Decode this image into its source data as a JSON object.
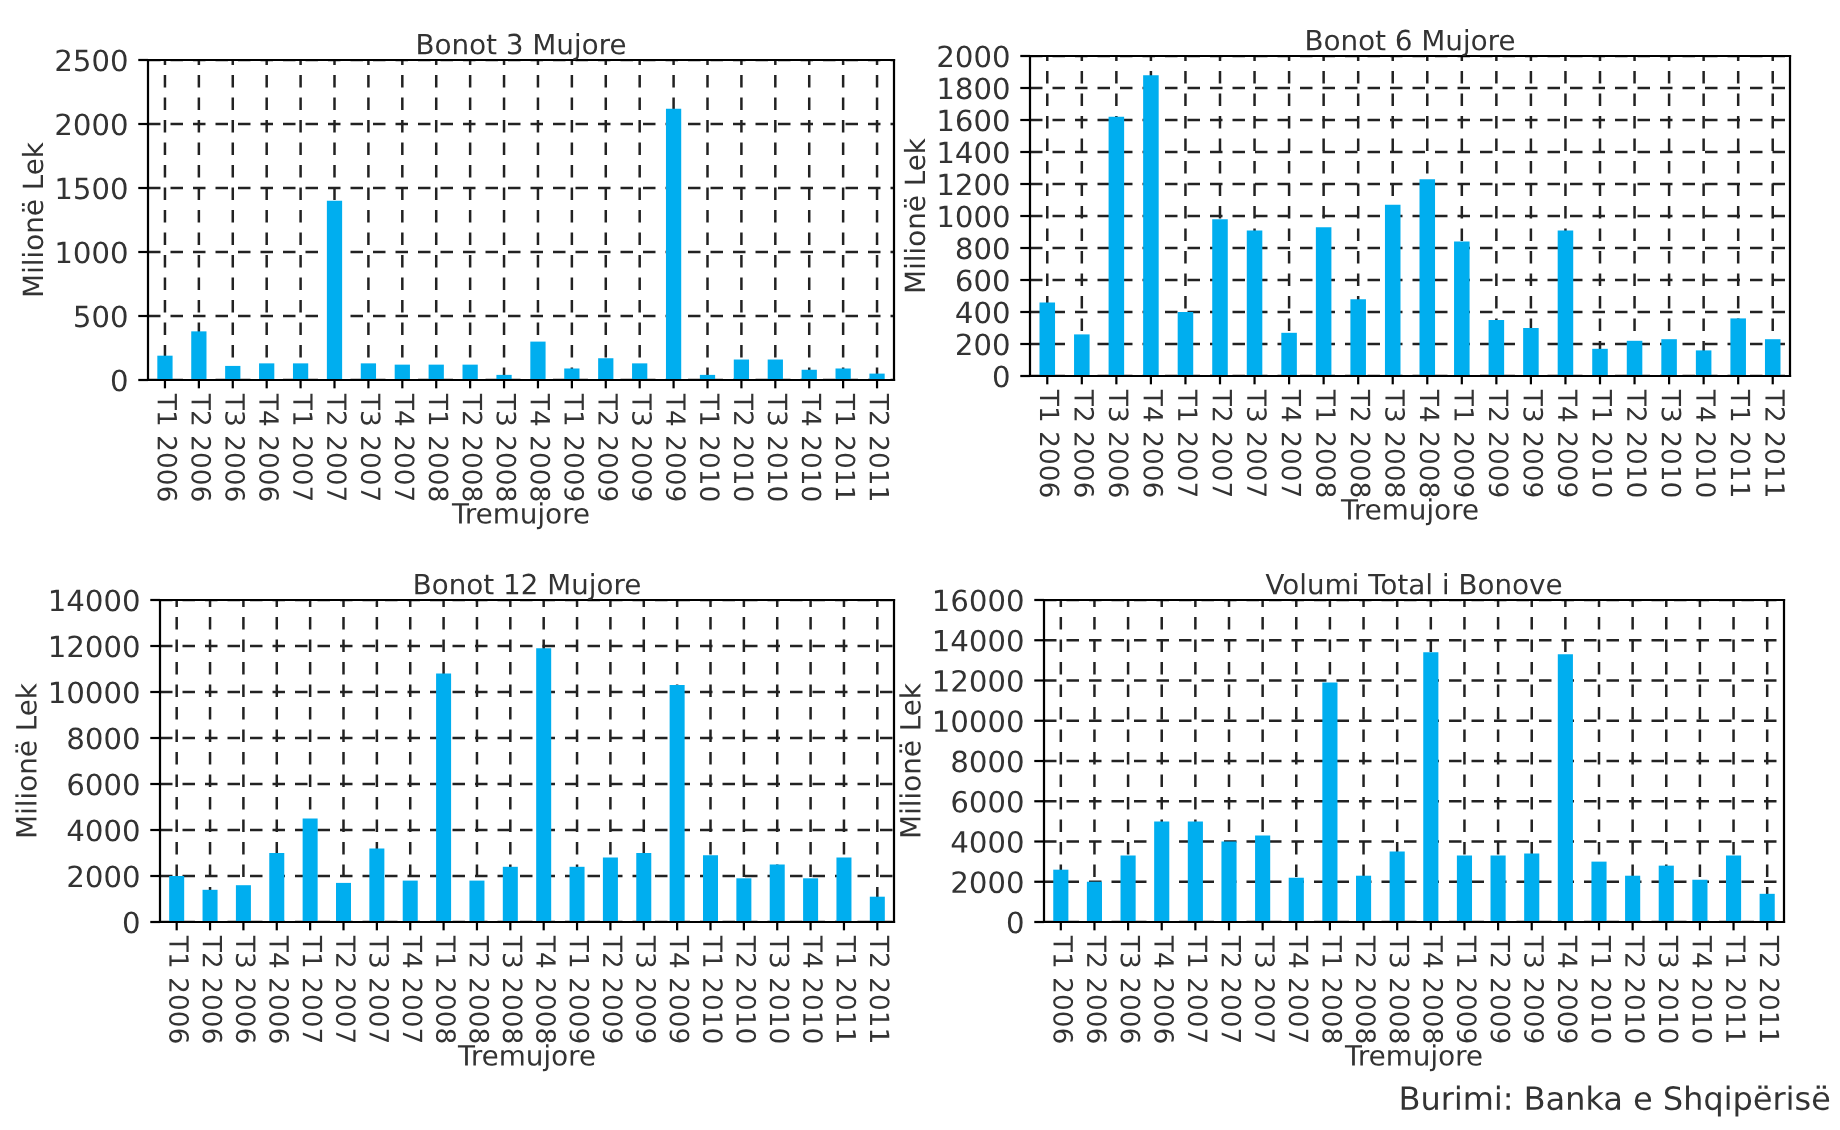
{
  "chart_data": [
    {
      "type": "bar",
      "title": "Bonot 3 Mujore",
      "xlabel": "Tremujore",
      "ylabel": "Milionë Lek",
      "categories": [
        "T1 2006",
        "T2 2006",
        "T3 2006",
        "T4 2006",
        "T1 2007",
        "T2 2007",
        "T3 2007",
        "T4 2007",
        "T1 2008",
        "T2 2008",
        "T3 2008",
        "T4 2008",
        "T1 2009",
        "T2 2009",
        "T3 2009",
        "T4 2009",
        "T1 2010",
        "T2 2010",
        "T3 2010",
        "T4 2010",
        "T1 2011",
        "T2 2011"
      ],
      "values": [
        190,
        380,
        110,
        130,
        130,
        1400,
        130,
        120,
        120,
        120,
        40,
        300,
        90,
        170,
        130,
        2120,
        40,
        160,
        160,
        80,
        90,
        50
      ],
      "color": "#00aeef",
      "ylim": [
        0,
        2500
      ],
      "yticks": [
        0,
        500,
        1000,
        1500,
        2000,
        2500
      ],
      "grid": true
    },
    {
      "type": "bar",
      "title": "Bonot 6 Mujore",
      "xlabel": "Tremujore",
      "ylabel": "Milionë Lek",
      "categories": [
        "T1 2006",
        "T2 2006",
        "T3 2006",
        "T4 2006",
        "T1 2007",
        "T2 2007",
        "T3 2007",
        "T4 2007",
        "T1 2008",
        "T2 2008",
        "T3 2008",
        "T4 2008",
        "T1 2009",
        "T2 2009",
        "T3 2009",
        "T4 2009",
        "T1 2010",
        "T2 2010",
        "T3 2010",
        "T4 2010",
        "T1 2011",
        "T2 2011"
      ],
      "values": [
        460,
        260,
        1620,
        1880,
        400,
        980,
        910,
        270,
        930,
        480,
        1070,
        1230,
        840,
        350,
        300,
        910,
        170,
        220,
        230,
        160,
        360,
        230
      ],
      "color": "#00aeef",
      "ylim": [
        0,
        2000
      ],
      "yticks": [
        0,
        200,
        400,
        600,
        800,
        1000,
        1200,
        1400,
        1600,
        1800,
        2000
      ],
      "grid": true
    },
    {
      "type": "bar",
      "title": "Bonot 12 Mujore",
      "xlabel": "Tremujore",
      "ylabel": "Milionë Lek",
      "categories": [
        "T1 2006",
        "T2 2006",
        "T3 2006",
        "T4 2006",
        "T1 2007",
        "T2 2007",
        "T3 2007",
        "T4 2007",
        "T1 2008",
        "T2 2008",
        "T3 2008",
        "T4 2008",
        "T1 2009",
        "T2 2009",
        "T3 2009",
        "T4 2009",
        "T1 2010",
        "T2 2010",
        "T3 2010",
        "T4 2010",
        "T1 2011",
        "T2 2011"
      ],
      "values": [
        2000,
        1400,
        1600,
        3000,
        4500,
        1700,
        3200,
        1800,
        10800,
        1800,
        2400,
        11900,
        2400,
        2800,
        3000,
        10300,
        2900,
        1900,
        2500,
        1900,
        2800,
        1100
      ],
      "color": "#00aeef",
      "ylim": [
        0,
        14000
      ],
      "yticks": [
        0,
        2000,
        4000,
        6000,
        8000,
        10000,
        12000,
        14000
      ],
      "grid": true
    },
    {
      "type": "bar",
      "title": "Volumi Total i Bonove",
      "xlabel": "Tremujore",
      "ylabel": "Milionë Lek",
      "categories": [
        "T1 2006",
        "T2 2006",
        "T3 2006",
        "T4 2006",
        "T1 2007",
        "T2 2007",
        "T3 2007",
        "T4 2007",
        "T1 2008",
        "T2 2008",
        "T3 2008",
        "T4 2008",
        "T1 2009",
        "T2 2009",
        "T3 2009",
        "T4 2009",
        "T1 2010",
        "T2 2010",
        "T3 2010",
        "T4 2010",
        "T1 2011",
        "T2 2011"
      ],
      "values": [
        2600,
        2000,
        3300,
        5000,
        5000,
        4000,
        4300,
        2200,
        11900,
        2300,
        3500,
        13400,
        3300,
        3300,
        3400,
        13300,
        3000,
        2300,
        2800,
        2100,
        3300,
        1400
      ],
      "color": "#00aeef",
      "ylim": [
        0,
        16000
      ],
      "yticks": [
        0,
        2000,
        4000,
        6000,
        8000,
        10000,
        12000,
        14000,
        16000
      ],
      "grid": true,
      "annotations": [
        "Burimi: Banka e Shqipërisë"
      ]
    }
  ]
}
